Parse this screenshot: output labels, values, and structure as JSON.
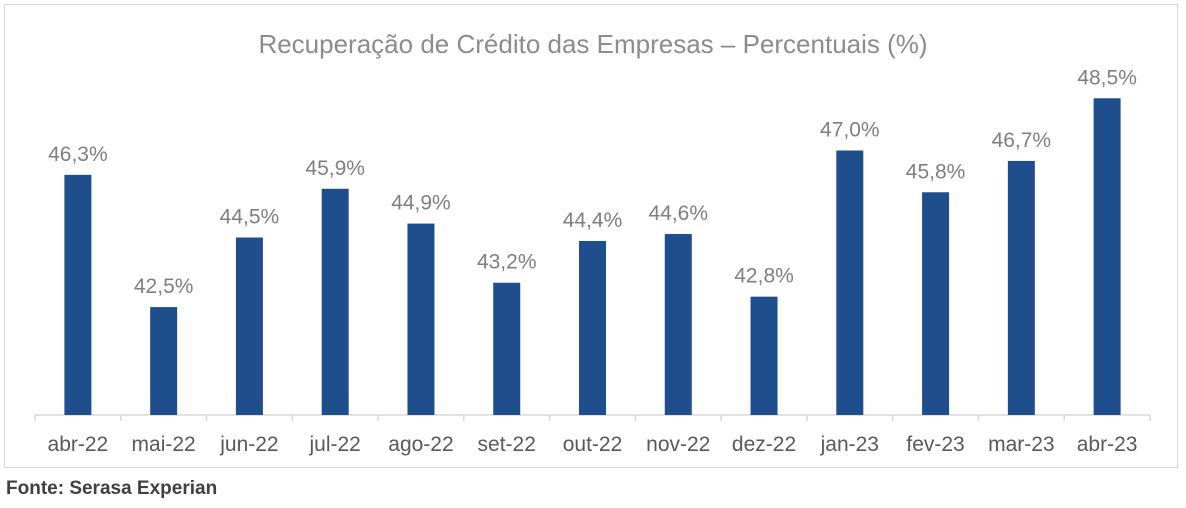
{
  "chart_data": {
    "type": "bar",
    "title": "Recuperação de Crédito das Empresas – Percentuais (%)",
    "categories": [
      "abr-22",
      "mai-22",
      "jun-22",
      "jul-22",
      "ago-22",
      "set-22",
      "out-22",
      "nov-22",
      "dez-22",
      "jan-23",
      "fev-23",
      "mar-23",
      "abr-23"
    ],
    "values": [
      46.3,
      42.5,
      44.5,
      45.9,
      44.9,
      43.2,
      44.4,
      44.6,
      42.8,
      47.0,
      45.8,
      46.7,
      48.5
    ],
    "value_labels": [
      "46,3%",
      "42,5%",
      "44,5%",
      "45,9%",
      "44,9%",
      "43,2%",
      "44,4%",
      "44,6%",
      "42,8%",
      "47,0%",
      "45,8%",
      "46,7%",
      "48,5%"
    ],
    "xlabel": "",
    "ylabel": "",
    "ylim": [
      39.4,
      49.6
    ],
    "grid": false,
    "legend": "none",
    "bar_color": "#1f4e8c"
  },
  "source": "Fonte: Serasa Experian"
}
